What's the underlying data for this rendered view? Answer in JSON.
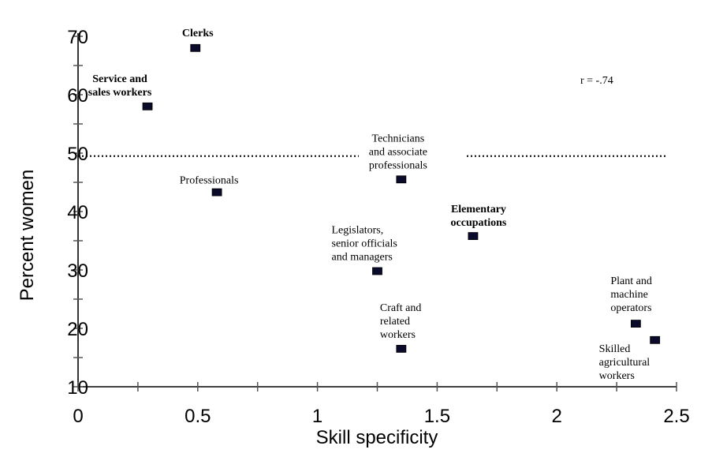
{
  "chart_data": {
    "type": "scatter",
    "xlabel": "Skill specificity",
    "ylabel": "Percent women",
    "xlim": [
      0,
      2.5
    ],
    "ylim": [
      10,
      70
    ],
    "x_ticks": [
      "0",
      "0.5",
      "1",
      "1.5",
      "2",
      "2.5"
    ],
    "y_ticks": [
      "10",
      "20",
      "30",
      "40",
      "50",
      "60",
      "70"
    ],
    "reference_line": {
      "y": 49.5,
      "style": "dotted"
    },
    "annotation": "r = -.74",
    "points": [
      {
        "x": 0.49,
        "y": 68,
        "label_lines": [
          "Clerks"
        ],
        "bold": true
      },
      {
        "x": 0.29,
        "y": 58,
        "label_lines": [
          "Service and",
          "sales workers"
        ],
        "bold": true
      },
      {
        "x": 0.58,
        "y": 43.3,
        "label_lines": [
          "Professionals"
        ],
        "bold": false
      },
      {
        "x": 1.35,
        "y": 45.5,
        "label_lines": [
          "Technicians",
          "and associate",
          "professionals"
        ],
        "bold": false
      },
      {
        "x": 1.65,
        "y": 35.8,
        "label_lines": [
          "Elementary",
          "occupations"
        ],
        "bold": true
      },
      {
        "x": 1.25,
        "y": 29.8,
        "label_lines": [
          "Legislators,",
          "senior officials",
          "and managers"
        ],
        "bold": false
      },
      {
        "x": 1.35,
        "y": 16.5,
        "label_lines": [
          "Craft and",
          "related",
          "workers"
        ],
        "bold": false
      },
      {
        "x": 2.33,
        "y": 20.8,
        "label_lines": [
          "Plant and",
          "machine",
          "operators"
        ],
        "bold": false
      },
      {
        "x": 2.41,
        "y": 18.0,
        "label_lines": [
          "Skilled",
          "agricultural",
          "workers"
        ],
        "bold": false
      }
    ]
  }
}
